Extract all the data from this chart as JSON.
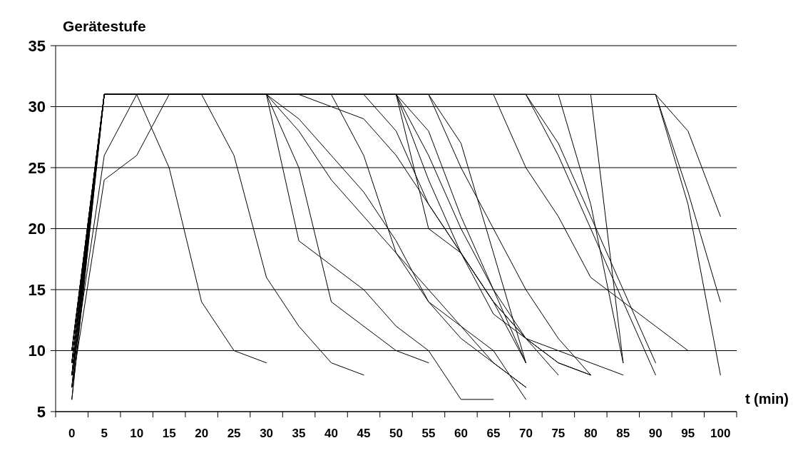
{
  "chart_data": {
    "type": "line",
    "ylabel": "Gerätestufe",
    "xlabel": "t (min)",
    "categories": [
      "0",
      "5",
      "10",
      "15",
      "20",
      "25",
      "30",
      "35",
      "40",
      "45",
      "50",
      "55",
      "60",
      "65",
      "70",
      "75",
      "80",
      "85",
      "90",
      "95",
      "100"
    ],
    "ylim": [
      5,
      35
    ],
    "yticks": [
      5,
      10,
      15,
      20,
      25,
      30,
      35
    ],
    "grid": "y",
    "series": [
      {
        "color": "#000000",
        "values": [
          8,
          26,
          31,
          25,
          14,
          10,
          9,
          null,
          null,
          null,
          null,
          null,
          null,
          null,
          null,
          null,
          null,
          null,
          null,
          null,
          null
        ]
      },
      {
        "color": "#000000",
        "values": [
          7,
          24,
          26,
          31,
          31,
          31,
          31,
          31,
          31,
          31,
          31,
          31,
          31,
          31,
          25,
          21,
          16,
          14,
          12,
          10,
          null
        ]
      },
      {
        "color": "#000000",
        "values": [
          9,
          31,
          31,
          31,
          31,
          26,
          16,
          12,
          9,
          8,
          null,
          null,
          null,
          null,
          null,
          null,
          null,
          null,
          null,
          null,
          null
        ]
      },
      {
        "color": "#000000",
        "values": [
          10,
          31,
          31,
          31,
          31,
          31,
          31,
          25,
          14,
          12,
          10,
          9,
          null,
          null,
          null,
          null,
          null,
          null,
          null,
          null,
          null
        ]
      },
      {
        "color": "#000000",
        "values": [
          6,
          31,
          31,
          31,
          31,
          31,
          31,
          19,
          17,
          15,
          12,
          10,
          6,
          6,
          null,
          null,
          null,
          null,
          null,
          null,
          null
        ]
      },
      {
        "color": "#000000",
        "values": [
          9,
          31,
          31,
          31,
          31,
          31,
          31,
          29,
          26,
          23,
          19,
          14,
          12,
          9,
          7,
          null,
          null,
          null,
          null,
          null,
          null
        ]
      },
      {
        "color": "#000000",
        "values": [
          8,
          31,
          31,
          31,
          31,
          31,
          31,
          28,
          24,
          21,
          18,
          15,
          12,
          10,
          6,
          null,
          null,
          null,
          null,
          null,
          null
        ]
      },
      {
        "color": "#000000",
        "values": [
          10,
          31,
          31,
          31,
          31,
          31,
          31,
          31,
          30,
          29,
          26,
          22,
          18,
          14,
          11,
          9,
          8,
          null,
          null,
          null,
          null
        ]
      },
      {
        "color": "#000000",
        "values": [
          7,
          31,
          31,
          31,
          31,
          31,
          31,
          31,
          31,
          26,
          18,
          14,
          11,
          9,
          7,
          null,
          null,
          null,
          null,
          null,
          null
        ]
      },
      {
        "color": "#000000",
        "values": [
          9,
          31,
          31,
          31,
          31,
          31,
          31,
          31,
          31,
          31,
          28,
          22,
          18,
          14,
          11,
          8,
          null,
          null,
          null,
          null,
          null
        ]
      },
      {
        "color": "#000000",
        "values": [
          8,
          31,
          31,
          31,
          31,
          31,
          31,
          31,
          31,
          31,
          31,
          20,
          18,
          14,
          9,
          null,
          null,
          null,
          null,
          null,
          null
        ]
      },
      {
        "color": "#000000",
        "values": [
          10,
          31,
          31,
          31,
          31,
          31,
          31,
          31,
          31,
          31,
          31,
          26,
          20,
          15,
          11,
          9,
          8,
          null,
          null,
          null,
          null
        ]
      },
      {
        "color": "#000000",
        "values": [
          7,
          31,
          31,
          31,
          31,
          31,
          31,
          31,
          31,
          31,
          31,
          24,
          18,
          13,
          11,
          10,
          9,
          8,
          null,
          null,
          null
        ]
      },
      {
        "color": "#000000",
        "values": [
          9,
          31,
          31,
          31,
          31,
          31,
          31,
          31,
          31,
          31,
          31,
          28,
          21,
          15,
          9,
          null,
          null,
          null,
          null,
          null,
          null
        ]
      },
      {
        "color": "#000000",
        "values": [
          8,
          31,
          31,
          31,
          31,
          31,
          31,
          31,
          31,
          31,
          31,
          31,
          27,
          18,
          9,
          null,
          null,
          null,
          null,
          null,
          null
        ]
      },
      {
        "color": "#000000",
        "values": [
          10,
          31,
          31,
          31,
          31,
          31,
          31,
          31,
          31,
          31,
          31,
          31,
          25,
          20,
          15,
          11,
          8,
          null,
          null,
          null,
          null
        ]
      },
      {
        "color": "#000000",
        "values": [
          7,
          31,
          31,
          31,
          31,
          31,
          31,
          31,
          31,
          31,
          31,
          31,
          31,
          31,
          31,
          27,
          21,
          15,
          9,
          null,
          null
        ]
      },
      {
        "color": "#000000",
        "values": [
          9,
          31,
          31,
          31,
          31,
          31,
          31,
          31,
          31,
          31,
          31,
          31,
          31,
          31,
          31,
          26,
          20,
          14,
          8,
          null,
          null
        ]
      },
      {
        "color": "#000000",
        "values": [
          8,
          31,
          31,
          31,
          31,
          31,
          31,
          31,
          31,
          31,
          31,
          31,
          31,
          31,
          31,
          31,
          22,
          9,
          null,
          null,
          null
        ]
      },
      {
        "color": "#000000",
        "values": [
          10,
          31,
          31,
          31,
          31,
          31,
          31,
          31,
          31,
          31,
          31,
          31,
          31,
          31,
          31,
          31,
          31,
          9,
          null,
          null,
          null
        ]
      },
      {
        "color": "#000000",
        "values": [
          6,
          31,
          31,
          31,
          31,
          31,
          31,
          31,
          31,
          31,
          31,
          31,
          31,
          31,
          31,
          31,
          31,
          31,
          31,
          28,
          21
        ]
      },
      {
        "color": "#000000",
        "values": [
          8,
          31,
          31,
          31,
          31,
          31,
          31,
          31,
          31,
          31,
          31,
          31,
          31,
          31,
          31,
          31,
          31,
          31,
          31,
          23,
          14
        ]
      },
      {
        "color": "#000000",
        "values": [
          9,
          31,
          31,
          31,
          31,
          31,
          31,
          31,
          31,
          31,
          31,
          31,
          31,
          31,
          31,
          31,
          31,
          31,
          31,
          22,
          8
        ]
      }
    ]
  }
}
